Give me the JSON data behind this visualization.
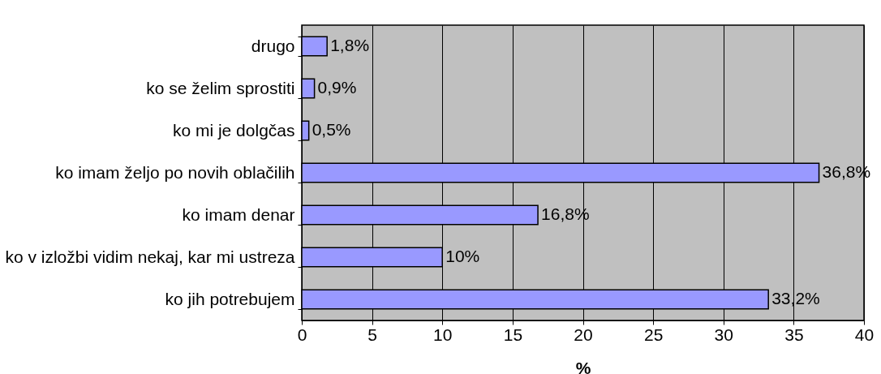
{
  "chart_data": {
    "type": "bar",
    "orientation": "horizontal",
    "xlabel": "%",
    "categories": [
      "drugo",
      "ko se želim sprostiti ",
      "ko mi je dolgčas",
      "ko imam željo po novih oblačilih ",
      "ko imam denar ",
      "ko v izložbi vidim nekaj, kar mi ustreza ",
      "ko jih potrebujem "
    ],
    "values": [
      1.8,
      0.9,
      0.5,
      36.8,
      16.8,
      10,
      33.2
    ],
    "value_labels": [
      "1,8%",
      "0,9%",
      "0,5%",
      "36,8%",
      "16,8%",
      "10%",
      "33,2%"
    ],
    "color": "#9999ff",
    "xlim": [
      0,
      40
    ],
    "xticks": [
      0,
      5,
      10,
      15,
      20,
      25,
      30,
      35,
      40
    ],
    "grid": "x"
  }
}
